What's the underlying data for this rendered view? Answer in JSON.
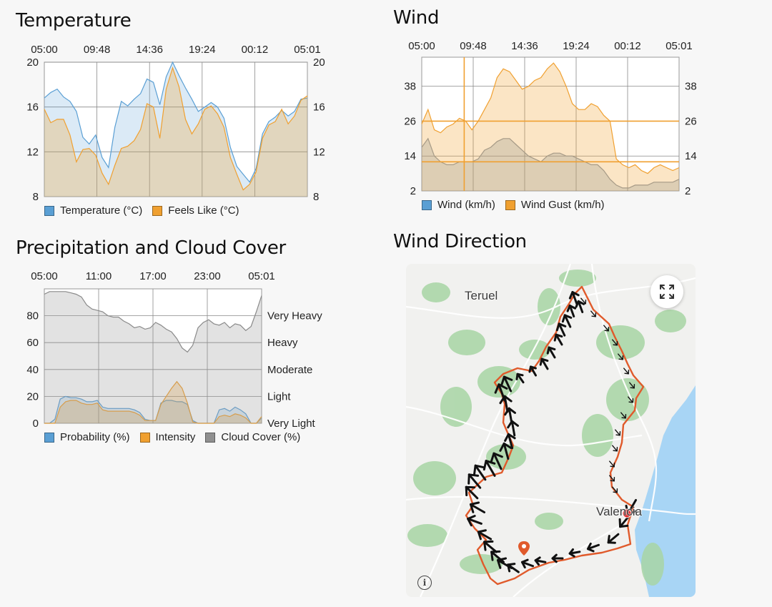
{
  "colors": {
    "blue": "#5a9fd4",
    "blue_fill": "rgba(90,159,212,0.22)",
    "orange": "#f0a030",
    "orange_fill": "rgba(240,160,48,0.28)",
    "gray": "#8a8a8a",
    "gray_fill": "rgba(150,150,150,0.28)",
    "route": "#e05a2b",
    "marker_red": "#e21b1b",
    "water": "#a8d5f5",
    "park": "#a8d5a4"
  },
  "temperature": {
    "title": "Temperature",
    "legend": [
      "Temperature (°C)",
      "Feels Like (°C)"
    ]
  },
  "wind": {
    "title": "Wind",
    "legend": [
      "Wind (km/h)",
      "Wind Gust (km/h)"
    ]
  },
  "precip": {
    "title": "Precipitation and Cloud Cover",
    "legend": [
      "Probability (%)",
      "Intensity",
      "Cloud Cover (%)"
    ]
  },
  "wind_direction": {
    "title": "Wind Direction",
    "map": {
      "city_north": "Teruel",
      "city_south": "Valencia",
      "expand_icon": "expand-arrows-icon",
      "info_icon": "info-icon"
    }
  },
  "chart_data": [
    {
      "type": "area",
      "title": "Temperature",
      "time_ticks": [
        "05:00",
        "09:48",
        "14:36",
        "19:24",
        "00:12",
        "05:01"
      ],
      "ylim": [
        8,
        20
      ],
      "y_ticks": [
        8,
        12,
        16,
        20
      ],
      "y_ticks_right": [
        8,
        12,
        16,
        20
      ],
      "grid": true,
      "legend_position": "bottom",
      "series": [
        {
          "name": "Temperature (°C)",
          "values": [
            16.8,
            17.3,
            17.6,
            16.9,
            16.5,
            15.6,
            13.3,
            12.7,
            13.5,
            11.5,
            10.6,
            14.2,
            16.5,
            16.1,
            16.7,
            17.2,
            18.5,
            18.2,
            16.2,
            18.7,
            20.0,
            18.8,
            17.7,
            16.7,
            15.6,
            16.0,
            16.4,
            16.0,
            15.0,
            12.4,
            10.7,
            10.0,
            9.3,
            10.5,
            13.6,
            14.7,
            15.1,
            15.7,
            15.2,
            15.6,
            16.7,
            16.8
          ]
        },
        {
          "name": "Feels Like (°C)",
          "values": [
            15.8,
            14.6,
            14.9,
            14.9,
            13.5,
            11.1,
            12.2,
            12.3,
            11.7,
            10.1,
            9.1,
            10.8,
            12.3,
            12.5,
            13.0,
            14.0,
            16.3,
            16.0,
            13.2,
            17.6,
            19.5,
            17.8,
            14.9,
            13.6,
            14.5,
            15.8,
            16.1,
            15.4,
            14.2,
            11.5,
            10.0,
            8.6,
            9.1,
            10.2,
            13.2,
            14.4,
            14.7,
            15.8,
            14.5,
            15.2,
            16.6,
            17.0
          ]
        }
      ]
    },
    {
      "type": "area",
      "title": "Wind",
      "time_ticks": [
        "05:00",
        "09:48",
        "14:36",
        "19:24",
        "00:12",
        "05:01"
      ],
      "ylim": [
        2,
        48
      ],
      "y_ticks": [
        2,
        14,
        26,
        38
      ],
      "y_ticks_right": [
        2,
        14,
        26,
        38
      ],
      "grid": true,
      "legend_position": "bottom",
      "reference_lines_y": [
        26,
        12
      ],
      "series": [
        {
          "name": "Wind (km/h)",
          "values": [
            17,
            20,
            14,
            12,
            11,
            11,
            12,
            12,
            12,
            13,
            16,
            17,
            19,
            20,
            20,
            18,
            16,
            14,
            13,
            12,
            14,
            15,
            15,
            14,
            14,
            13,
            12,
            11,
            11,
            9,
            6,
            4,
            3,
            3,
            4,
            4,
            4,
            5,
            5,
            5,
            5,
            6
          ]
        },
        {
          "name": "Wind Gust (km/h)",
          "values": [
            25,
            30,
            23,
            22,
            24,
            25,
            27,
            26,
            23,
            26,
            30,
            34,
            41,
            44,
            43,
            40,
            37,
            38,
            40,
            41,
            44,
            46,
            43,
            38,
            32,
            30,
            30,
            32,
            31,
            28,
            26,
            13,
            11,
            10,
            11,
            9,
            8,
            10,
            11,
            10,
            9,
            10
          ]
        }
      ]
    },
    {
      "type": "area",
      "title": "Precipitation and Cloud Cover",
      "time_ticks": [
        "05:00",
        "11:00",
        "17:00",
        "23:00",
        "05:01"
      ],
      "ylim": [
        0,
        100
      ],
      "y_ticks": [
        0,
        20,
        40,
        60,
        80
      ],
      "y_labels_right": [
        "Very Light",
        "Light",
        "Moderate",
        "Heavy",
        "Very Heavy"
      ],
      "grid": true,
      "legend_position": "bottom",
      "series": [
        {
          "name": "Probability (%)",
          "values": [
            0,
            0,
            3,
            18,
            20,
            19,
            19,
            18,
            16,
            16,
            17,
            12,
            11,
            11,
            11,
            11,
            11,
            10,
            8,
            3,
            2,
            2,
            15,
            17,
            17,
            16,
            16,
            14,
            2,
            0,
            0,
            0,
            0,
            10,
            11,
            9,
            12,
            10,
            7,
            0,
            0,
            4
          ]
        },
        {
          "name": "Intensity",
          "values": [
            0,
            0,
            0,
            12,
            16,
            17,
            17,
            15,
            14,
            14,
            15,
            10,
            9,
            9,
            9,
            9,
            9,
            8,
            6,
            2,
            2,
            2,
            14,
            20,
            26,
            31,
            26,
            15,
            1,
            0,
            0,
            0,
            0,
            5,
            6,
            5,
            7,
            6,
            4,
            0,
            0,
            5
          ]
        },
        {
          "name": "Cloud Cover (%)",
          "values": [
            96,
            98,
            98,
            98,
            98,
            97,
            96,
            94,
            88,
            85,
            84,
            83,
            80,
            79,
            79,
            76,
            74,
            71,
            72,
            70,
            71,
            75,
            73,
            70,
            68,
            63,
            56,
            53,
            58,
            71,
            75,
            77,
            74,
            73,
            75,
            71,
            74,
            73,
            69,
            72,
            83,
            95
          ]
        }
      ]
    }
  ]
}
